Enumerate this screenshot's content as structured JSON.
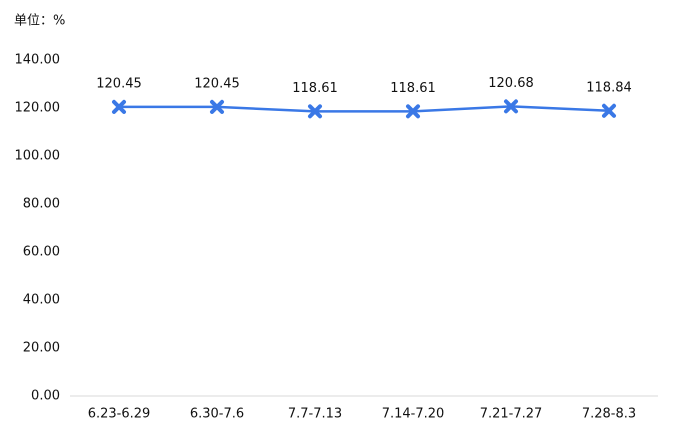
{
  "chart_data": {
    "type": "line",
    "unit_label": "单位：%",
    "categories": [
      "6.23-6.29",
      "6.30-7.6",
      "7.7-7.13",
      "7.14-7.20",
      "7.21-7.27",
      "7.28-8.3"
    ],
    "values": [
      120.45,
      120.45,
      118.61,
      118.61,
      120.68,
      118.84
    ],
    "color": "#3a78e6",
    "ylim": [
      0,
      140
    ],
    "yticks": [
      {
        "value": 0,
        "label": "0.00"
      },
      {
        "value": 20,
        "label": "20.00"
      },
      {
        "value": 40,
        "label": "40.00"
      },
      {
        "value": 60,
        "label": "60.00"
      },
      {
        "value": 80,
        "label": "80.00"
      },
      {
        "value": 100,
        "label": "100.00"
      },
      {
        "value": 120,
        "label": "120.00"
      },
      {
        "value": 140,
        "label": "140.00"
      }
    ],
    "grid": false
  }
}
